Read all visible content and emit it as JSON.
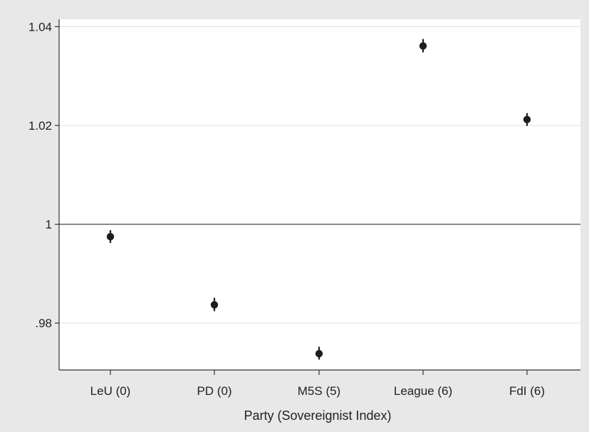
{
  "chart_data": {
    "type": "scatter",
    "title": "",
    "xlabel": "Party (Sovereignist Index)",
    "ylabel": "",
    "categories": [
      "LeU (0)",
      "PD (0)",
      "M5S (5)",
      "League (6)",
      "FdI (6)"
    ],
    "series": [
      {
        "values": [
          0.9975,
          0.9837,
          0.9738,
          1.0361,
          1.0212
        ],
        "ci_low": [
          0.9962,
          0.9824,
          0.9726,
          1.0348,
          1.0199
        ],
        "ci_high": [
          0.9988,
          0.9851,
          0.9752,
          1.0375,
          1.0225
        ]
      }
    ],
    "ylim": [
      0.9705,
      1.0415
    ],
    "yticks": [
      0.98,
      1.0,
      1.02,
      1.04
    ],
    "ytick_labels": [
      ".98",
      "1",
      "1.02",
      "1.04"
    ],
    "reference_line": 1,
    "grid": true,
    "colors": {
      "background": "#e8e8e8",
      "plot_area": "#ffffff",
      "grid": "#e6e6e6",
      "marker": "#1e1e1e",
      "axis": "#333333"
    }
  }
}
